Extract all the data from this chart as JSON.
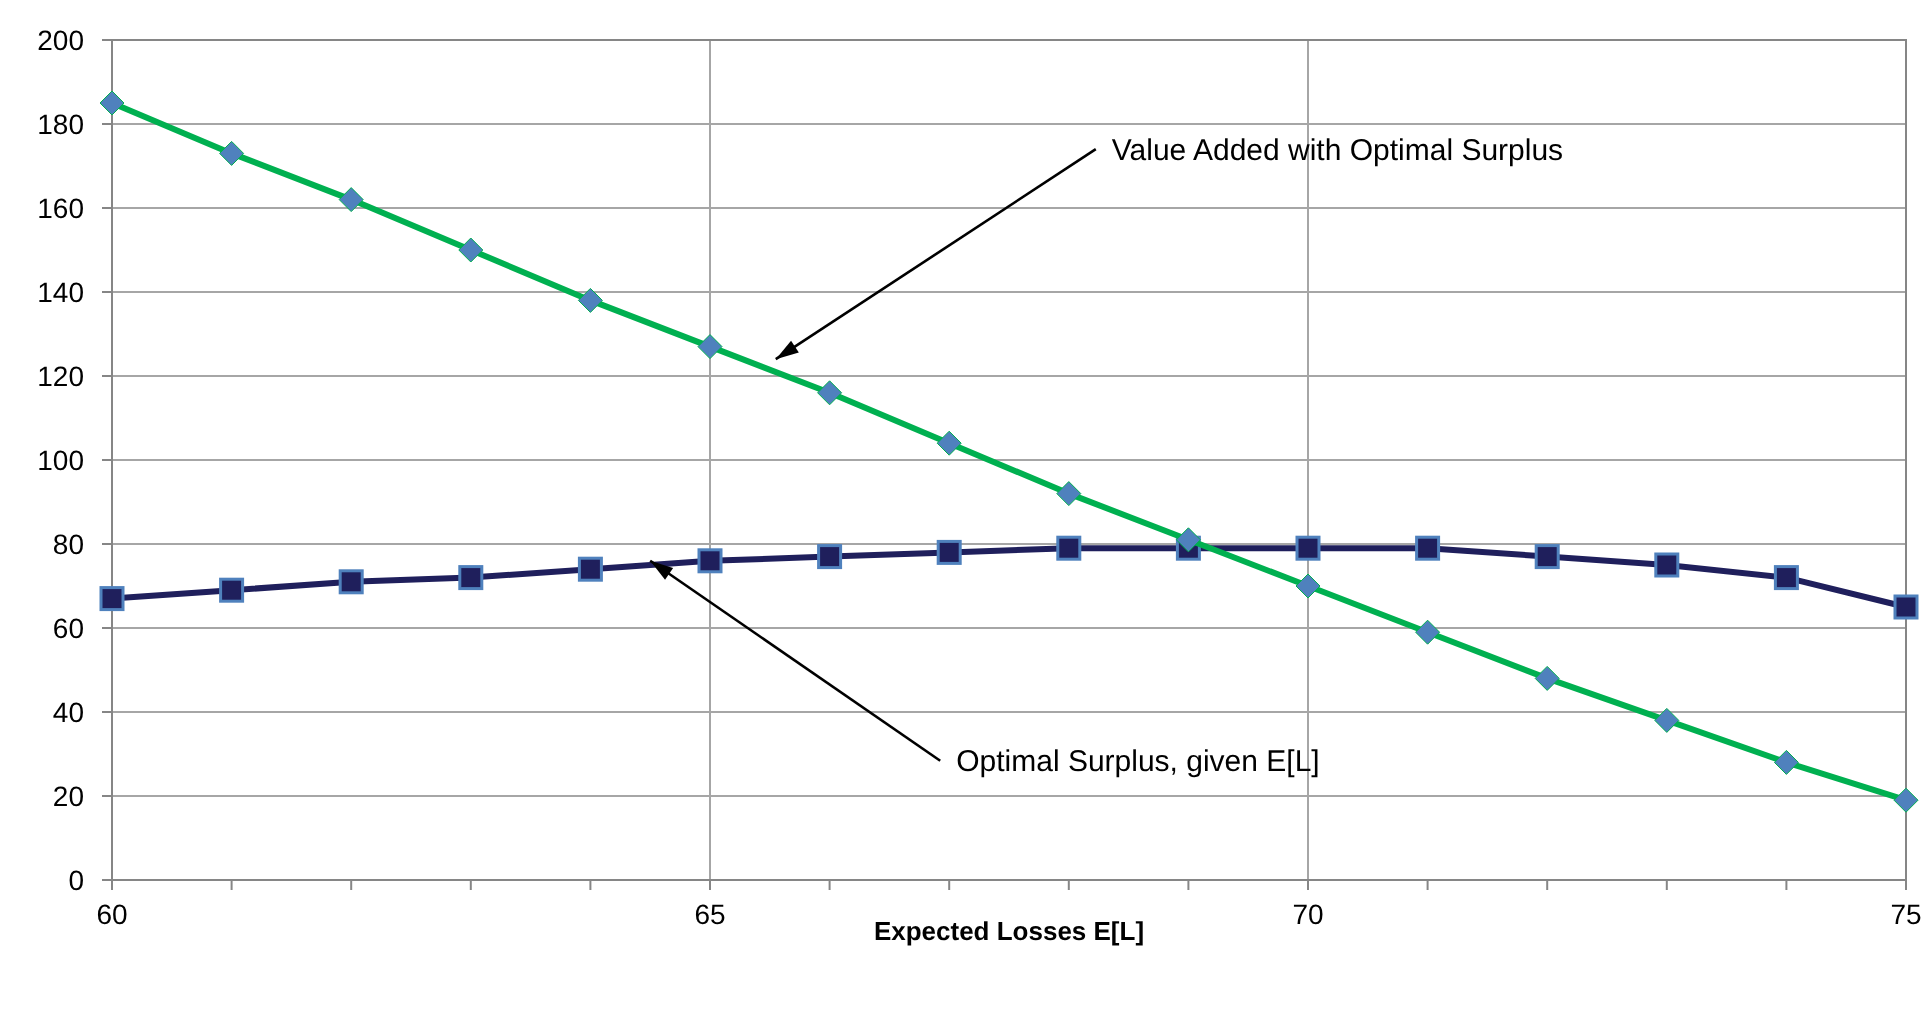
{
  "chart_data": {
    "type": "line",
    "xlabel": "Expected Losses E[L]",
    "x": [
      60,
      61,
      62,
      63,
      64,
      65,
      66,
      67,
      68,
      69,
      70,
      71,
      72,
      73,
      74,
      75
    ],
    "series": [
      {
        "color": "#00b050",
        "marker": "diamond",
        "values": [
          185,
          173,
          162,
          150,
          138,
          127,
          116,
          104,
          92,
          81,
          70,
          59,
          48,
          38,
          28,
          19
        ]
      },
      {
        "color": "#1f1f5c",
        "marker": "square",
        "values": [
          67,
          69,
          71,
          72,
          74,
          76,
          77,
          78,
          79,
          79,
          79,
          79,
          77,
          75,
          72,
          65
        ]
      }
    ],
    "xlim": [
      60,
      75
    ],
    "xticks": [
      60,
      {
        "value": 61,
        "label": null
      },
      {
        "value": 62,
        "label": null
      },
      {
        "value": 63,
        "label": null
      },
      {
        "value": 64,
        "label": null
      },
      65,
      {
        "value": 66,
        "label": null
      },
      {
        "value": 67,
        "label": null
      },
      {
        "value": 68,
        "label": null
      },
      {
        "value": 69,
        "label": null
      },
      70,
      {
        "value": 71,
        "label": null
      },
      {
        "value": 72,
        "label": null
      },
      {
        "value": 73,
        "label": null
      },
      {
        "value": 74,
        "label": null
      },
      75
    ],
    "ylim": [
      0,
      200
    ],
    "yticks": [
      0,
      20,
      40,
      60,
      80,
      100,
      120,
      140,
      160,
      180,
      200
    ],
    "grid": true,
    "line_style": "solid",
    "annotations": [
      {
        "text": "Value Added with Optimal Surplus",
        "x": 65.55,
        "y": 124
      },
      {
        "text": "Optimal Surplus, given E[L]",
        "x": 64.5,
        "y": 76
      }
    ]
  }
}
